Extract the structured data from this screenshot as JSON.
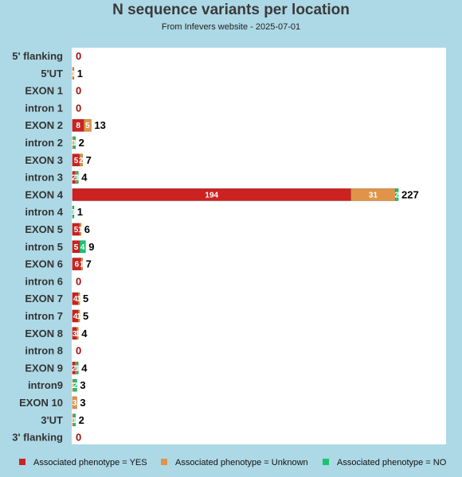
{
  "chart_data": {
    "type": "bar",
    "orientation": "horizontal",
    "stacked": true,
    "title": "N sequence variants per location",
    "subtitle": "From Infevers website - 2025-07-01",
    "categories": [
      "5' flanking",
      "5'UT",
      "EXON 1",
      "intron 1",
      "EXON 2",
      "intron 2",
      "EXON 3",
      "intron 3",
      "EXON 4",
      "intron 4",
      "EXON 5",
      "intron 5",
      "EXON 6",
      "intron 6",
      "EXON 7",
      "intron 7",
      "EXON 8",
      "intron 8",
      "EXON 9",
      "intron9",
      "EXON 10",
      "3'UT",
      "3' flanking"
    ],
    "series": [
      {
        "name": "Associated phenotype = YES",
        "color": "#cc2222",
        "values": [
          0,
          0,
          0,
          0,
          8,
          0,
          5,
          2,
          194,
          0,
          5,
          5,
          6,
          0,
          4,
          4,
          3,
          0,
          2,
          0,
          0,
          0,
          0
        ]
      },
      {
        "name": "Associated phenotype = Unknown",
        "color": "#e0944a",
        "values": [
          0,
          1,
          0,
          0,
          5,
          1,
          2,
          1,
          31,
          0,
          1,
          0,
          1,
          0,
          1,
          1,
          1,
          0,
          1,
          1,
          3,
          1,
          0
        ]
      },
      {
        "name": "Associated phenotype = NO",
        "color": "#19c46e",
        "values": [
          0,
          0,
          0,
          0,
          0,
          1,
          0,
          1,
          2,
          1,
          0,
          4,
          0,
          0,
          0,
          0,
          0,
          0,
          1,
          2,
          0,
          1,
          0
        ]
      }
    ],
    "totals": [
      0,
      1,
      0,
      0,
      13,
      2,
      7,
      4,
      227,
      1,
      6,
      9,
      7,
      0,
      5,
      5,
      4,
      0,
      4,
      3,
      3,
      2,
      0
    ],
    "xlim": [
      0,
      227
    ],
    "grid": false,
    "legend_position": "bottom"
  }
}
